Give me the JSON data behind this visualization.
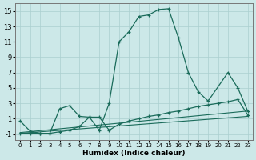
{
  "xlabel": "Humidex (Indice chaleur)",
  "background_color": "#cce8e8",
  "grid_color": "#aacfcf",
  "line_color": "#1a6b5a",
  "xlim": [
    -0.5,
    23.5
  ],
  "ylim": [
    -1.8,
    16.0
  ],
  "yticks": [
    -1,
    1,
    3,
    5,
    7,
    9,
    11,
    13,
    15
  ],
  "xticks": [
    0,
    1,
    2,
    3,
    4,
    5,
    6,
    7,
    8,
    9,
    10,
    11,
    12,
    13,
    14,
    15,
    16,
    17,
    18,
    19,
    20,
    21,
    22,
    23
  ],
  "series": [
    {
      "x": [
        0,
        1,
        2,
        3,
        4,
        5,
        6,
        7,
        8,
        9,
        10,
        11,
        12,
        13,
        14,
        15,
        16,
        17,
        18,
        19,
        21,
        22,
        23
      ],
      "y": [
        0.7,
        -0.6,
        -0.9,
        -0.9,
        2.3,
        2.7,
        1.3,
        1.2,
        -0.5,
        3.0,
        11.0,
        12.3,
        14.3,
        14.5,
        15.2,
        15.3,
        11.5,
        7.0,
        4.5,
        3.3,
        7.0,
        5.0,
        2.0
      ],
      "has_markers": true
    },
    {
      "x": [
        0,
        1,
        2,
        3,
        4,
        5,
        6,
        7,
        8,
        9,
        10,
        11,
        12,
        13,
        14,
        15,
        16,
        17,
        18,
        19,
        20,
        21,
        22,
        23
      ],
      "y": [
        -0.9,
        -0.9,
        -0.9,
        -0.9,
        -0.7,
        -0.5,
        0.0,
        1.2,
        1.2,
        -0.5,
        0.3,
        0.7,
        1.0,
        1.3,
        1.5,
        1.8,
        2.0,
        2.3,
        2.6,
        2.8,
        3.0,
        3.2,
        3.5,
        1.5
      ],
      "has_markers": true
    },
    {
      "x": [
        0,
        23
      ],
      "y": [
        -0.8,
        2.0
      ],
      "has_markers": false
    },
    {
      "x": [
        0,
        23
      ],
      "y": [
        -0.9,
        1.3
      ],
      "has_markers": false
    }
  ]
}
